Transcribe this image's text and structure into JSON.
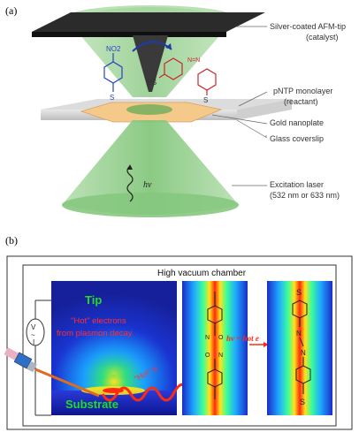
{
  "panel_a": {
    "label": "(a)",
    "labels": {
      "afm_tip_1": "Silver-coated AFM-tip",
      "afm_tip_2": "(catalyst)",
      "monolayer_1": "pNTP monolayer",
      "monolayer_2": "(reactant)",
      "nanoplate": "Gold nanoplate",
      "coverslip": "Glass coverslip",
      "laser_1": "Excitation laser",
      "laser_2": "(532 nm or 633 nm)",
      "hv": "hν"
    },
    "molecule": {
      "no2": "NO2",
      "hs": "HS",
      "s_left": "S",
      "s_right": "S",
      "nn": "N=N"
    }
  },
  "panel_b": {
    "label": "(b)",
    "chamber": "High vacuum chamber",
    "tip": "Tip",
    "hot_electrons_1": "\"Hot\" electrons",
    "hot_electrons_2": "from plasmon decay",
    "hot_e": "\"Hot\" e",
    "substrate": "Substrate",
    "reaction": "hν + hot e",
    "s_top": "S",
    "s_bottom": "S",
    "n": "N"
  },
  "colors": {
    "laser_green": "#9fd39a",
    "plate_gold": "#f5c98a",
    "arrow_red": "#e02020",
    "tip_green": "#22dd22"
  }
}
